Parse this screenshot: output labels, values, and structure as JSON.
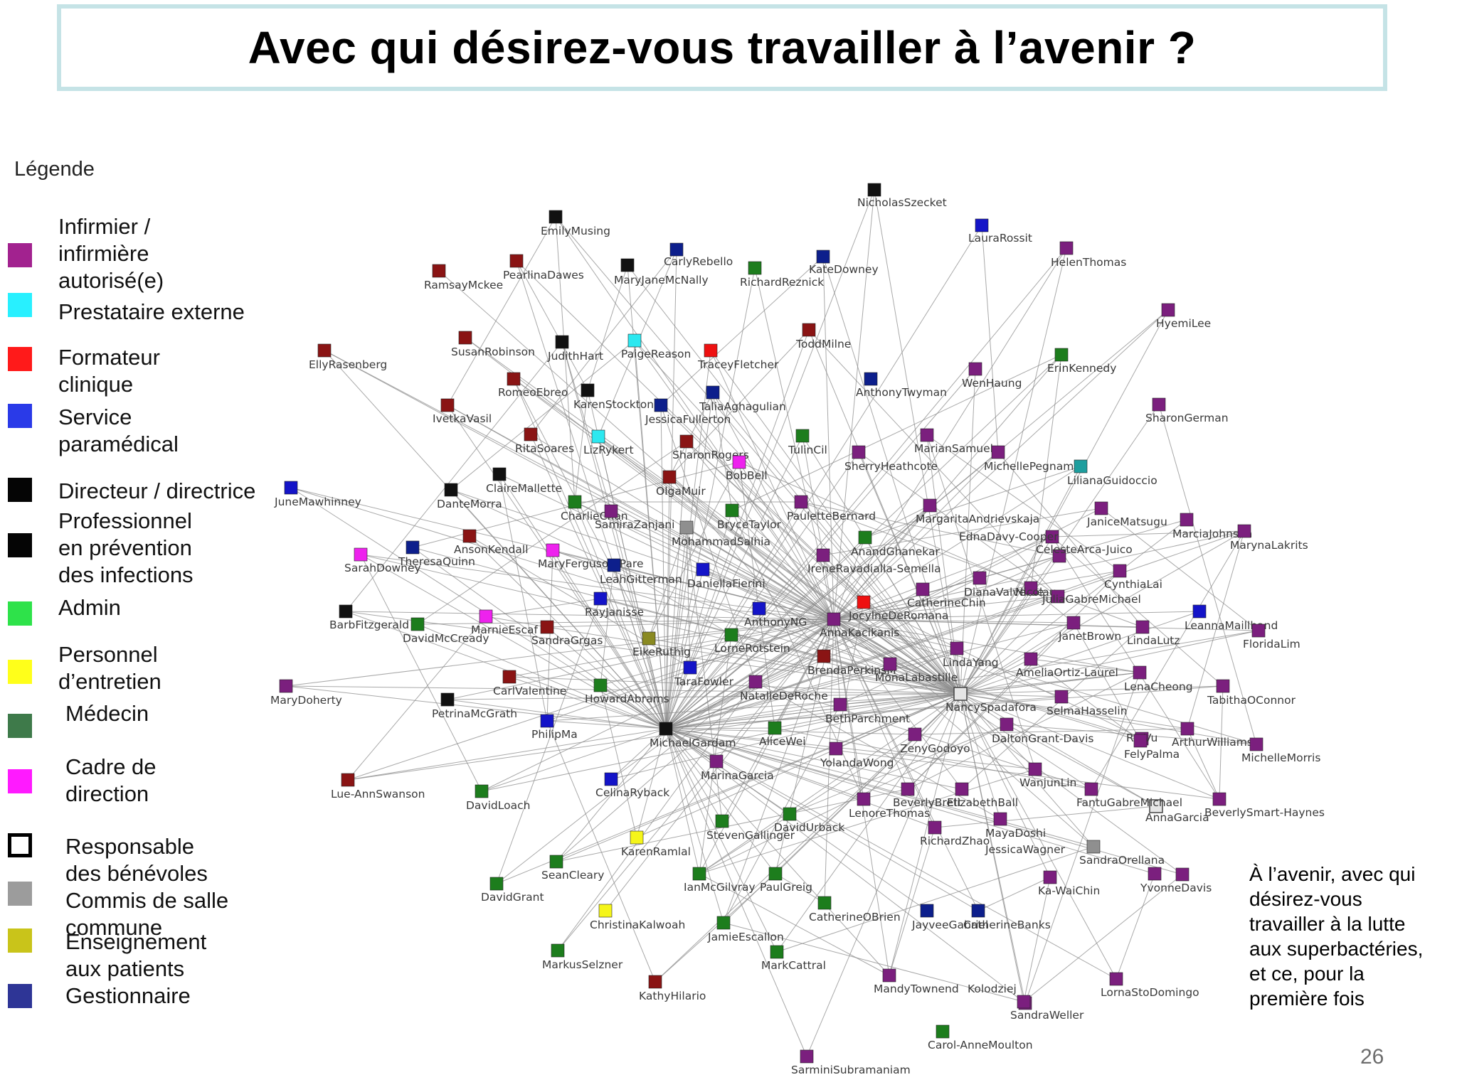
{
  "slide": {
    "title": "Avec qui désirez-vous travailler à l’avenir ?",
    "page_number": "26",
    "side_note": "À l’avenir, avec qui\ndésirez-vous\ntravailler  à la lutte\naux superbactéries,\net ce, pour la\npremière fois"
  },
  "legend": {
    "title": "Légende",
    "items": [
      {
        "label": "Infirmier /\ninfirmière\nautorisé(e)",
        "color": "#a2228f",
        "style": "fill"
      },
      {
        "label": "Prestataire externe",
        "color": "#28f0ff",
        "style": "fill"
      },
      {
        "label": "Formateur\nclinique",
        "color": "#ff1a1a",
        "style": "fill"
      },
      {
        "label": "Service\nparamédical",
        "color": "#2a3ae8",
        "style": "fill"
      },
      {
        "label": "Directeur / directrice",
        "color": "#050505",
        "style": "fill"
      },
      {
        "label": "Professionnel\nen prévention\ndes infections",
        "color": "#050505",
        "style": "fill"
      },
      {
        "label": "Admin",
        "color": "#2ee24a",
        "style": "fill"
      },
      {
        "label": "Personnel\nd’entretien",
        "color": "#ffff1a",
        "style": "fill"
      },
      {
        "label": "Médecin",
        "color": "#3e7a4a",
        "style": "fill"
      },
      {
        "label": "Cadre de\ndirection",
        "color": "#ff1aff",
        "style": "fill"
      },
      {
        "label": "Responsable\ndes bénévoles",
        "color": "#000000",
        "style": "outline"
      },
      {
        "label": "Commis de salle\ncommune",
        "color": "#9c9c9c",
        "style": "fill"
      },
      {
        "label": "Enseignement\naux patients",
        "color": "#c9c41a",
        "style": "fill"
      },
      {
        "label": "Gestionnaire",
        "color": "#2e3596",
        "style": "fill"
      }
    ]
  },
  "network": {
    "palette": {
      "P": "#7b1f7e",
      "M": "#8a1414",
      "K": "#111111",
      "B": "#1414c8",
      "N": "#0d1f8c",
      "G": "#1d7d1d",
      "C": "#2ce8f0",
      "R": "#ee1111",
      "Y": "#f5f51a",
      "O": "#8a8a22",
      "A": "#8f8f8f",
      "W": "#e6e6e6",
      "T": "#1e9e9e",
      "X": "#ee22ee"
    },
    "hubs": [
      "AnnaKacikanis",
      "NancySpadafora",
      "MichaelGardam"
    ],
    "nodes": [
      {
        "name": "NicholasSzecket",
        "type": "K"
      },
      {
        "name": "EmilyMusing",
        "type": "K"
      },
      {
        "name": "LauraRossit",
        "type": "B"
      },
      {
        "name": "HelenThomas",
        "type": "P"
      },
      {
        "name": "CarlyRebello",
        "type": "N"
      },
      {
        "name": "KateDowney",
        "type": "N"
      },
      {
        "name": "PearlinaDawes",
        "type": "M"
      },
      {
        "name": "MaryJaneMcNally",
        "type": "K"
      },
      {
        "name": "RichardReznick",
        "type": "G"
      },
      {
        "name": "RamsayMckee",
        "type": "M"
      },
      {
        "name": "HyemiLee",
        "type": "P"
      },
      {
        "name": "ToddMilne",
        "type": "M"
      },
      {
        "name": "EllyRasenberg",
        "type": "M"
      },
      {
        "name": "SusanRobinson",
        "type": "M"
      },
      {
        "name": "JudithHart",
        "type": "K"
      },
      {
        "name": "PaigeReason",
        "type": "C"
      },
      {
        "name": "TraceyFletcher",
        "type": "R"
      },
      {
        "name": "ErinKennedy",
        "type": "G"
      },
      {
        "name": "WenHaung",
        "type": "P"
      },
      {
        "name": "AnthonyTwyman",
        "type": "N"
      },
      {
        "name": "RomeoEbreo",
        "type": "M"
      },
      {
        "name": "KarenStockton",
        "type": "K"
      },
      {
        "name": "TaliaAghagulian",
        "type": "N"
      },
      {
        "name": "JessicaFullerton",
        "type": "N"
      },
      {
        "name": "IvetkaVasil",
        "type": "M"
      },
      {
        "name": "SharonGerman",
        "type": "P"
      },
      {
        "name": "RitaSoares",
        "type": "M"
      },
      {
        "name": "LizRykert",
        "type": "C"
      },
      {
        "name": "SharonRogers",
        "type": "M"
      },
      {
        "name": "TulinCil",
        "type": "G"
      },
      {
        "name": "MarianSamuel",
        "type": "P"
      },
      {
        "name": "SherryHeathcote",
        "type": "P"
      },
      {
        "name": "MichellePegnam",
        "type": "P"
      },
      {
        "name": "LilianaGuidoccio",
        "type": "T"
      },
      {
        "name": "BobBell",
        "type": "X"
      },
      {
        "name": "JuneMawhinney",
        "type": "B"
      },
      {
        "name": "ClaireMallette",
        "type": "K"
      },
      {
        "name": "DanteMorra",
        "type": "K"
      },
      {
        "name": "OlgaMuir",
        "type": "M"
      },
      {
        "name": "CharlieChan",
        "type": "G"
      },
      {
        "name": "SamiraZanjani",
        "type": "P"
      },
      {
        "name": "BryceTaylor",
        "type": "G"
      },
      {
        "name": "PauletteBernard",
        "type": "P"
      },
      {
        "name": "MargaritaAndrievskaja",
        "type": "P"
      },
      {
        "name": "JaniceMatsugu",
        "type": "P"
      },
      {
        "name": "MarciaJohnson",
        "type": "P"
      },
      {
        "name": "MarynaLakrits",
        "type": "P"
      },
      {
        "name": "EdnaDavy-Cooper",
        "type": "P"
      },
      {
        "name": "CelesteArca-Juico",
        "type": "P"
      },
      {
        "name": "AnsonKendall",
        "type": "M"
      },
      {
        "name": "SarahDowney",
        "type": "X"
      },
      {
        "name": "TheresaQuinn",
        "type": "N"
      },
      {
        "name": "MohammadSalhia",
        "type": "A"
      },
      {
        "name": "AnandGhanekar",
        "type": "G"
      },
      {
        "name": "MaryFerguson-Pare",
        "type": "X"
      },
      {
        "name": "LeahGitterman",
        "type": "N"
      },
      {
        "name": "DaniellaFierini",
        "type": "B"
      },
      {
        "name": "IreneRavadialla-Semella",
        "type": "P"
      },
      {
        "name": "CynthiaLai",
        "type": "P"
      },
      {
        "name": "DianaValverde",
        "type": "P"
      },
      {
        "name": "JuliaNicolau",
        "type": "P"
      },
      {
        "name": "SabreMichael",
        "type": "P"
      },
      {
        "name": "CatherineChin",
        "type": "P"
      },
      {
        "name": "BarbFitzgerald",
        "type": "K"
      },
      {
        "name": "RayJanisse",
        "type": "B"
      },
      {
        "name": "AnthonyNG",
        "type": "B"
      },
      {
        "name": "AnnaKacikanis",
        "type": "P"
      },
      {
        "name": "JocylneDeRomana",
        "type": "R"
      },
      {
        "name": "LeannaMaillhand",
        "type": "B"
      },
      {
        "name": "FloridaLim",
        "type": "P"
      },
      {
        "name": "JanetBrown",
        "type": "P"
      },
      {
        "name": "LindaLutz",
        "type": "P"
      },
      {
        "name": "MarnieEscaf",
        "type": "X"
      },
      {
        "name": "DavidMcCready",
        "type": "G"
      },
      {
        "name": "SandraGrgas",
        "type": "M"
      },
      {
        "name": "EikeRuthig",
        "type": "O"
      },
      {
        "name": "LorneRotstein",
        "type": "G"
      },
      {
        "name": "LindaYang",
        "type": "P"
      },
      {
        "name": "MaryDoherty",
        "type": "P"
      },
      {
        "name": "BrendaPerkinsM",
        "type": "M"
      },
      {
        "name": "MonaLabastille",
        "type": "P"
      },
      {
        "name": "AmeliaOrtiz-Laurel",
        "type": "P"
      },
      {
        "name": "LenaCheong",
        "type": "P"
      },
      {
        "name": "TabithaOConnor",
        "type": "P"
      },
      {
        "name": "CarlValentine",
        "type": "M"
      },
      {
        "name": "TaraFowler",
        "type": "B"
      },
      {
        "name": "HowardAbrams",
        "type": "G"
      },
      {
        "name": "NatalieDeRoche",
        "type": "P"
      },
      {
        "name": "NancySpadafora",
        "type": "W"
      },
      {
        "name": "SelmaHasselin",
        "type": "P"
      },
      {
        "name": "PetrinaMcGrath",
        "type": "K"
      },
      {
        "name": "BethParchment",
        "type": "P"
      },
      {
        "name": "PhilipMa",
        "type": "B"
      },
      {
        "name": "MichaelGardam",
        "type": "K"
      },
      {
        "name": "AliceWei",
        "type": "G"
      },
      {
        "name": "ZenyGodoyo",
        "type": "P"
      },
      {
        "name": "DaltonGrant-Davis",
        "type": "P"
      },
      {
        "name": "RinVu",
        "type": "P"
      },
      {
        "name": "FelyPalma",
        "type": "P"
      },
      {
        "name": "ArthurWilliams",
        "type": "P"
      },
      {
        "name": "MichelleMorris",
        "type": "P"
      },
      {
        "name": "YolandaWong",
        "type": "P"
      },
      {
        "name": "MarinaGarcia",
        "type": "P"
      },
      {
        "name": "Lue-AnnSwanson",
        "type": "M"
      },
      {
        "name": "CelinaRyback",
        "type": "B"
      },
      {
        "name": "DavidLoach",
        "type": "G"
      },
      {
        "name": "WanjunLin",
        "type": "P"
      },
      {
        "name": "BeverlyBrett",
        "type": "P"
      },
      {
        "name": "ElizabethBall",
        "type": "P"
      },
      {
        "name": "FantuGabreMichael",
        "type": "W"
      },
      {
        "name": "AnnaGarcia",
        "type": "P"
      },
      {
        "name": "BeverlySmart-Haynes",
        "type": "P"
      },
      {
        "name": "LenoreThomas",
        "type": "P"
      },
      {
        "name": "DavidUrback",
        "type": "G"
      },
      {
        "name": "StevenGallinger",
        "type": "G"
      },
      {
        "name": "RichardZhao",
        "type": "P"
      },
      {
        "name": "MayaDoshi",
        "type": "P"
      },
      {
        "name": "JessicaWagner",
        "type": "A"
      },
      {
        "name": "SandraOrellana",
        "type": "P"
      },
      {
        "name": "YvonneDavis",
        "type": "P"
      },
      {
        "name": "KarenRamlal",
        "type": "Y"
      },
      {
        "name": "SeanCleary",
        "type": "G"
      },
      {
        "name": "IanMcGilvray",
        "type": "G"
      },
      {
        "name": "PaulGreig",
        "type": "G"
      },
      {
        "name": "DavidGrant",
        "type": "G"
      },
      {
        "name": "Ka-WaiChin",
        "type": "P"
      },
      {
        "name": "CatherineOBrien",
        "type": "G"
      },
      {
        "name": "JayveeGabriel",
        "type": "N"
      },
      {
        "name": "CatherineBanks",
        "type": "N"
      },
      {
        "name": "ChristinaKalwoah",
        "type": "Y"
      },
      {
        "name": "JamieEscallon",
        "type": "G"
      },
      {
        "name": "MarkusSelzner",
        "type": "G"
      },
      {
        "name": "MarkCattral",
        "type": "G"
      },
      {
        "name": "KathyHilario",
        "type": "M"
      },
      {
        "name": "MandyTownend",
        "type": "P"
      },
      {
        "name": "Kolodziej",
        "type": "P"
      },
      {
        "name": "LornaStoDomingo",
        "type": "P"
      },
      {
        "name": "SandraWeller",
        "type": "P"
      },
      {
        "name": "Carol-AnneMoulton",
        "type": "G"
      },
      {
        "name": "SarminiSubramaniam",
        "type": "P"
      }
    ]
  }
}
